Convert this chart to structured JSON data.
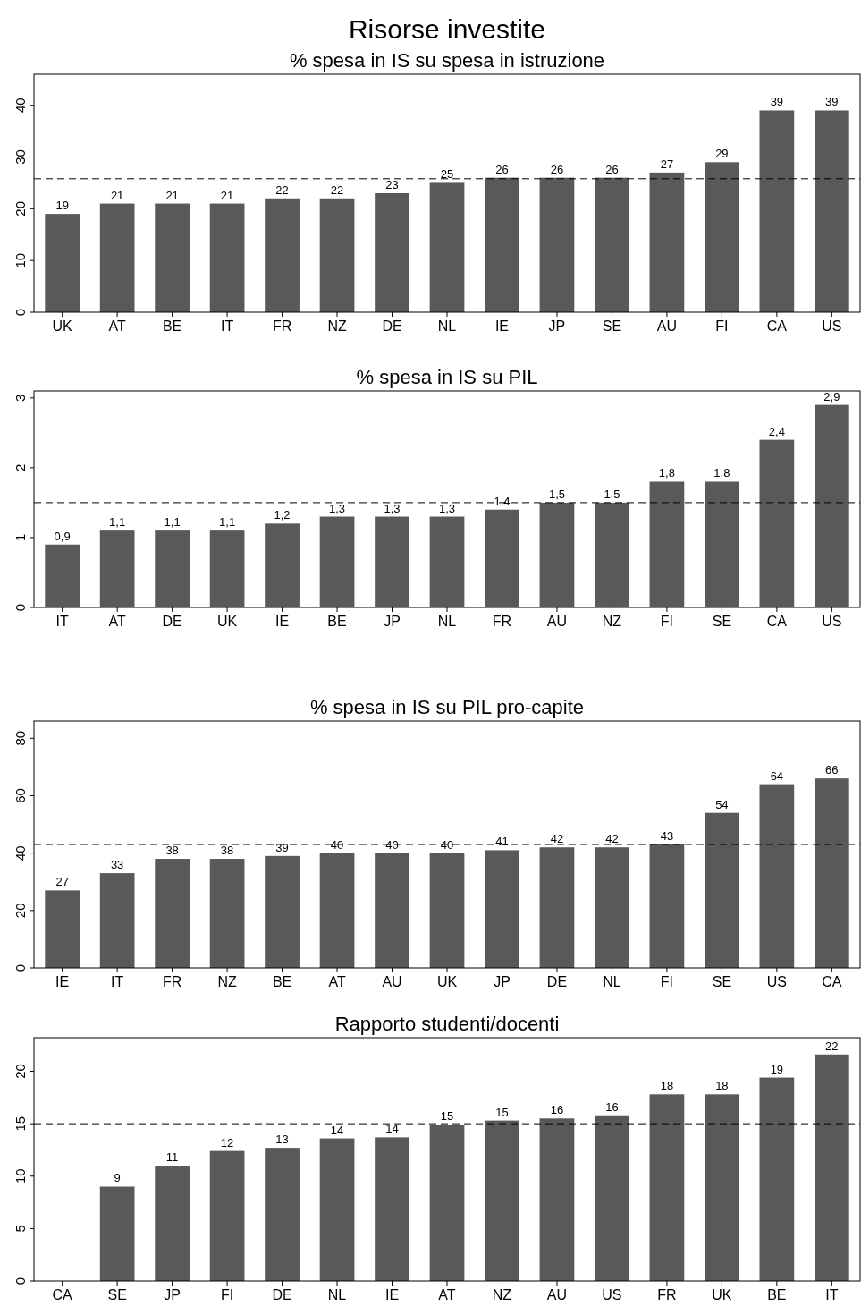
{
  "chart_data": [
    {
      "type": "bar",
      "title": "Risorse investite",
      "subtitle": "% spesa in IS su spesa in istruzione",
      "categories": [
        "UK",
        "AT",
        "BE",
        "IT",
        "FR",
        "NZ",
        "DE",
        "NL",
        "IE",
        "JP",
        "SE",
        "AU",
        "FI",
        "CA",
        "US"
      ],
      "values": [
        19,
        21,
        21,
        21,
        22,
        22,
        23,
        25,
        26,
        26,
        26,
        27,
        29,
        39,
        39
      ],
      "color": "#595959",
      "ylim": [
        0,
        46
      ],
      "yticks": [
        0,
        10,
        20,
        30,
        40
      ],
      "grid": false,
      "data_labels": true,
      "ref_lines": [
        {
          "axis": "y",
          "value": 25.8,
          "line_style": "dashed",
          "color": "#000000"
        }
      ]
    },
    {
      "type": "bar",
      "title": "% spesa in IS su PIL",
      "categories": [
        "IT",
        "AT",
        "DE",
        "UK",
        "IE",
        "BE",
        "JP",
        "NL",
        "FR",
        "AU",
        "NZ",
        "FI",
        "SE",
        "CA",
        "US"
      ],
      "values": [
        0.9,
        1.1,
        1.1,
        1.1,
        1.2,
        1.3,
        1.3,
        1.3,
        1.4,
        1.5,
        1.5,
        1.8,
        1.8,
        2.4,
        2.9
      ],
      "value_labels": [
        "0,9",
        "1,1",
        "1,1",
        "1,1",
        "1,2",
        "1,3",
        "1,3",
        "1,3",
        "1,4",
        "1,5",
        "1,5",
        "1,8",
        "1,8",
        "2,4",
        "2,9"
      ],
      "color": "#595959",
      "ylim": [
        0,
        3.1
      ],
      "yticks": [
        0,
        1,
        2,
        3
      ],
      "grid": false,
      "ref_lines": [
        {
          "axis": "y",
          "value": 1.5,
          "line_style": "dashed",
          "color": "#000000"
        }
      ]
    },
    {
      "type": "bar",
      "title": "% spesa in IS su PIL pro-capite",
      "categories": [
        "IE",
        "IT",
        "FR",
        "NZ",
        "BE",
        "AT",
        "AU",
        "UK",
        "JP",
        "DE",
        "NL",
        "FI",
        "SE",
        "US",
        "CA"
      ],
      "values": [
        27,
        33,
        38,
        38,
        39,
        40,
        40,
        40,
        41,
        42,
        42,
        43,
        54,
        64,
        66
      ],
      "color": "#595959",
      "ylim": [
        0,
        86
      ],
      "yticks": [
        0,
        20,
        40,
        60,
        80
      ],
      "grid": false,
      "data_labels": true,
      "ref_lines": [
        {
          "axis": "y",
          "value": 43,
          "line_style": "dashed",
          "color": "#000000"
        }
      ]
    },
    {
      "type": "bar",
      "title": "Rapporto studenti/docenti",
      "categories": [
        "CA",
        "SE",
        "JP",
        "FI",
        "DE",
        "NL",
        "IE",
        "AT",
        "NZ",
        "AU",
        "US",
        "FR",
        "UK",
        "BE",
        "IT"
      ],
      "values": [
        null,
        9,
        11,
        12.4,
        12.7,
        13.6,
        13.7,
        14.9,
        15.3,
        15.5,
        15.8,
        17.8,
        17.8,
        19.4,
        21.6
      ],
      "value_labels": [
        null,
        "9",
        "11",
        "12",
        "13",
        "14",
        "14",
        "15",
        "15",
        "16",
        "16",
        "18",
        "18",
        "19",
        "22"
      ],
      "color": "#595959",
      "ylim": [
        0,
        23.2
      ],
      "yticks": [
        0,
        5,
        10,
        15,
        20
      ],
      "grid": false,
      "ref_lines": [
        {
          "axis": "y",
          "value": 15,
          "line_style": "dashed",
          "color": "#000000"
        }
      ]
    }
  ]
}
